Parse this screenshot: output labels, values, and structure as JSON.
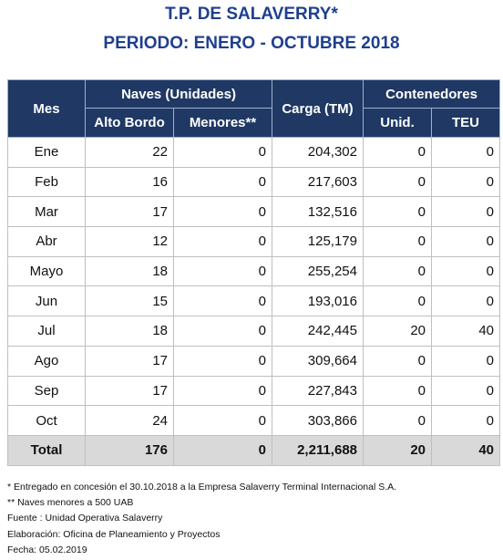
{
  "header": {
    "title": "T.P. DE SALAVERRY*",
    "subtitle": "PERIODO: ENERO - OCTUBRE 2018"
  },
  "table": {
    "columns": {
      "mes": "Mes",
      "naves": "Naves (Unidades)",
      "alto_bordo": "Alto Bordo",
      "menores": "Menores**",
      "carga": "Carga (TM)",
      "contenedores": "Contenedores",
      "unid": "Unid.",
      "teu": "TEU"
    },
    "rows": [
      [
        "Ene",
        "22",
        "0",
        "204,302",
        "0",
        "0"
      ],
      [
        "Feb",
        "16",
        "0",
        "217,603",
        "0",
        "0"
      ],
      [
        "Mar",
        "17",
        "0",
        "132,516",
        "0",
        "0"
      ],
      [
        "Abr",
        "12",
        "0",
        "125,179",
        "0",
        "0"
      ],
      [
        "Mayo",
        "18",
        "0",
        "255,254",
        "0",
        "0"
      ],
      [
        "Jun",
        "15",
        "0",
        "193,016",
        "0",
        "0"
      ],
      [
        "Jul",
        "18",
        "0",
        "242,445",
        "20",
        "40"
      ],
      [
        "Ago",
        "17",
        "0",
        "309,664",
        "0",
        "0"
      ],
      [
        "Sep",
        "17",
        "0",
        "227,843",
        "0",
        "0"
      ],
      [
        "Oct",
        "24",
        "0",
        "303,866",
        "0",
        "0"
      ]
    ],
    "total": [
      "Total",
      "176",
      "0",
      "2,211,688",
      "20",
      "40"
    ]
  },
  "notes": [
    "* Entregado en concesión el 30.10.2018 a la Empresa Salaverry Terminal Internacional S.A.",
    "** Naves menores a 500 UAB",
    "Fuente : Unidad Operativa Salaverry",
    "Elaboración: Oficina de Planeamiento y Proyectos",
    "Fecha: 05.02.2019"
  ]
}
